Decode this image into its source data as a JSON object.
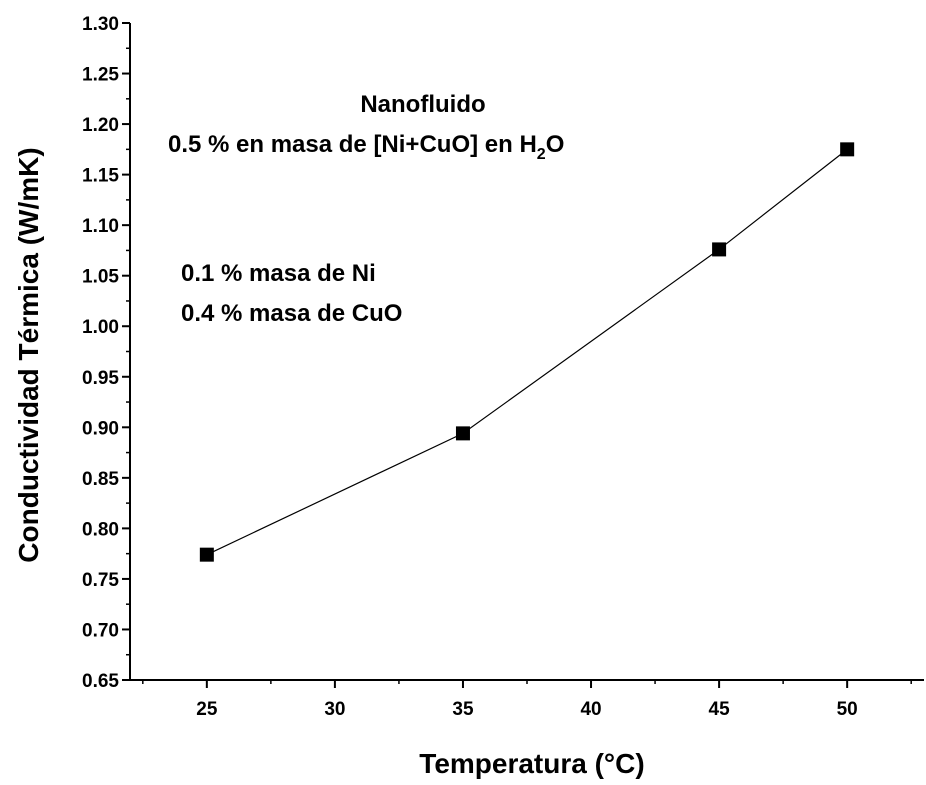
{
  "chart_data": {
    "type": "line",
    "title": "",
    "xlabel": "Temperatura (°C)",
    "ylabel": "Conductividad Térmica (W/mK)",
    "xlim": [
      22,
      53
    ],
    "ylim": [
      0.65,
      1.3
    ],
    "x_ticks": [
      25,
      30,
      35,
      40,
      45,
      50
    ],
    "y_ticks": [
      0.65,
      0.7,
      0.75,
      0.8,
      0.85,
      0.9,
      0.95,
      1.0,
      1.05,
      1.1,
      1.15,
      1.2,
      1.25,
      1.3
    ],
    "x_tick_labels": [
      "25",
      "30",
      "35",
      "40",
      "45",
      "50"
    ],
    "y_tick_labels": [
      "0.65",
      "0.70",
      "0.75",
      "0.80",
      "0.85",
      "0.90",
      "0.95",
      "1.00",
      "1.05",
      "1.10",
      "1.15",
      "1.20",
      "1.25",
      "1.30"
    ],
    "series": [
      {
        "x": [
          25,
          35,
          45,
          50
        ],
        "y": [
          0.774,
          0.894,
          1.076,
          1.175
        ],
        "marker": "square",
        "color": "#000000"
      }
    ],
    "annotations": {
      "nanofluid_title": "Nanofluido",
      "composition_prefix": "0.5 % en masa de [Ni+CuO] en H",
      "composition_subscript": "2",
      "composition_suffix": "O",
      "ni_line": "0.1 % masa de Ni",
      "cuo_line": "0.4 % masa de CuO"
    },
    "grid": false,
    "legend": "none"
  }
}
